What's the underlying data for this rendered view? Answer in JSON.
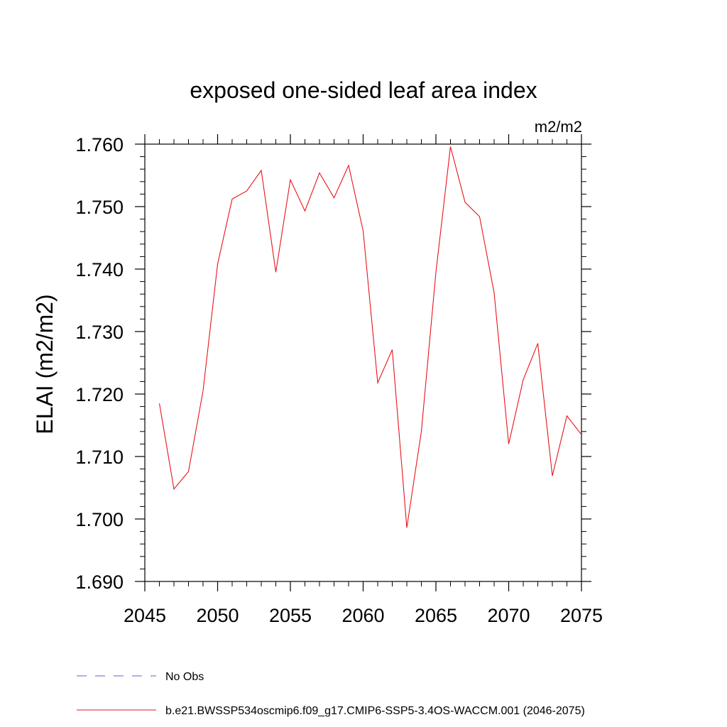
{
  "chart_data": {
    "type": "line",
    "title": "exposed one-sided leaf area index",
    "units_label": "m2/m2",
    "ylabel": "ELAI  (m2/m2)",
    "xlabel": "",
    "xlim": [
      2045,
      2075
    ],
    "ylim": [
      1.69,
      1.76
    ],
    "x_ticks": [
      2045,
      2050,
      2055,
      2060,
      2065,
      2070,
      2075
    ],
    "x_tick_labels": [
      "2045",
      "2050",
      "2055",
      "2060",
      "2065",
      "2070",
      "2075"
    ],
    "y_ticks": [
      1.69,
      1.7,
      1.71,
      1.72,
      1.73,
      1.74,
      1.75,
      1.76
    ],
    "y_tick_labels": [
      "1.690",
      "1.700",
      "1.710",
      "1.720",
      "1.730",
      "1.740",
      "1.750",
      "1.760"
    ],
    "grid": false,
    "series": [
      {
        "name": "b.e21.BWSSP534oscmip6.f09_g17.CMIP6-SSP5-3.4OS-WACCM.001 (2046-2075)",
        "color": "#e8141c",
        "x": [
          2046,
          2047,
          2048,
          2049,
          2050,
          2051,
          2052,
          2053,
          2054,
          2055,
          2056,
          2057,
          2058,
          2059,
          2060,
          2061,
          2062,
          2063,
          2064,
          2065,
          2066,
          2067,
          2068,
          2069,
          2070,
          2071,
          2072,
          2073,
          2074,
          2075
        ],
        "values": [
          1.7185,
          1.7048,
          1.7076,
          1.7205,
          1.7408,
          1.7512,
          1.7525,
          1.7558,
          1.7395,
          1.7543,
          1.7493,
          1.7554,
          1.7514,
          1.7566,
          1.7461,
          1.7218,
          1.7271,
          1.6986,
          1.714,
          1.7395,
          1.7596,
          1.7507,
          1.7484,
          1.7362,
          1.712,
          1.7223,
          1.7281,
          1.7069,
          1.7165,
          1.7135
        ]
      }
    ],
    "legend": {
      "placement": "bottom-left",
      "entries": [
        {
          "label": "No Obs",
          "color": "#6a5acd",
          "style": "dashed"
        },
        {
          "label": "b.e21.BWSSP534oscmip6.f09_g17.CMIP6-SSP5-3.4OS-WACCM.001 (2046-2075)",
          "color": "#e8141c",
          "style": "solid"
        }
      ]
    }
  }
}
